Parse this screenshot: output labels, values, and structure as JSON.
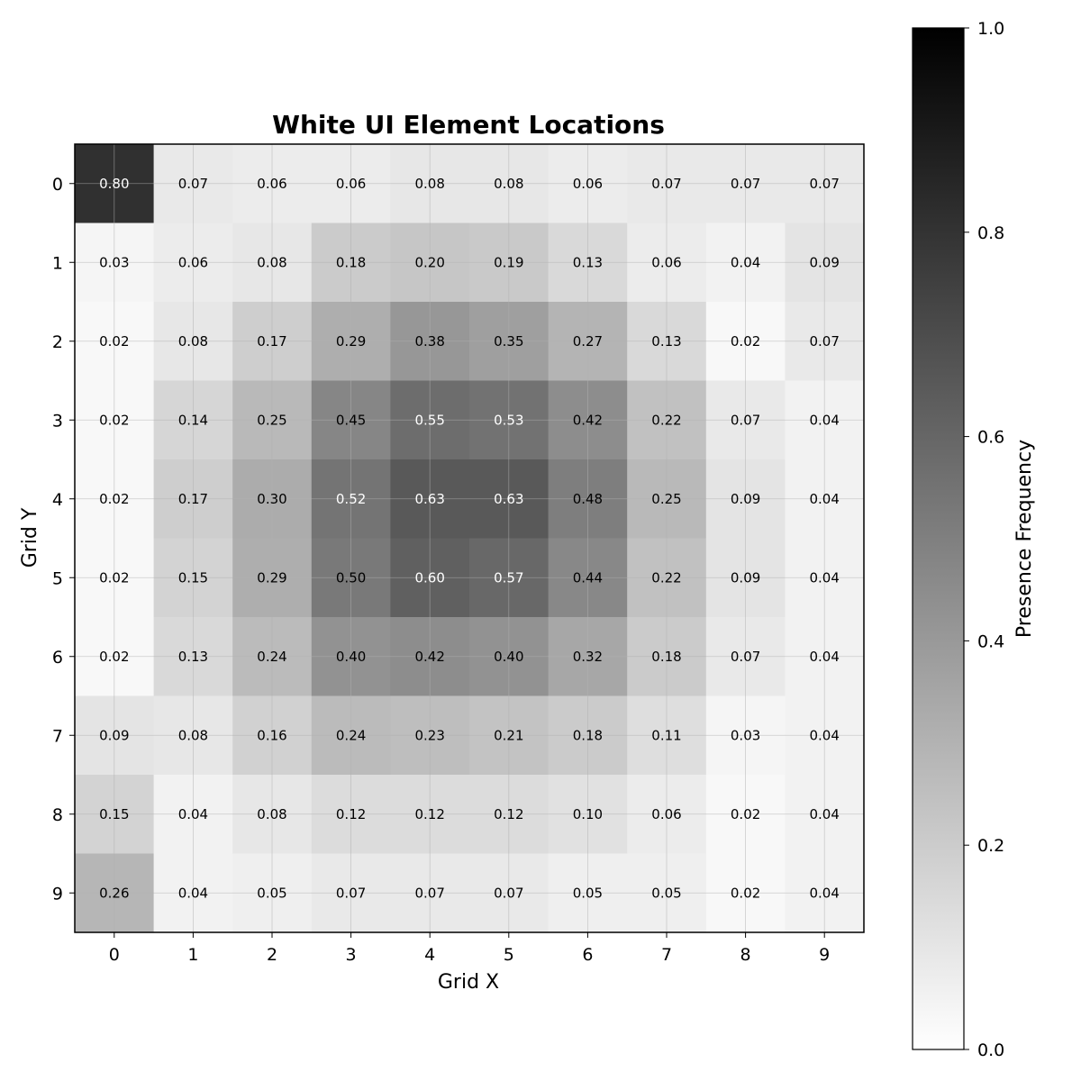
{
  "chart_data": {
    "type": "heatmap",
    "title": "White UI Element Locations",
    "xlabel": "Grid X",
    "ylabel": "Grid Y",
    "x_categories": [
      "0",
      "1",
      "2",
      "3",
      "4",
      "5",
      "6",
      "7",
      "8",
      "9"
    ],
    "y_categories": [
      "0",
      "1",
      "2",
      "3",
      "4",
      "5",
      "6",
      "7",
      "8",
      "9"
    ],
    "values": [
      [
        0.8,
        0.07,
        0.06,
        0.06,
        0.08,
        0.08,
        0.06,
        0.07,
        0.07,
        0.07
      ],
      [
        0.03,
        0.06,
        0.08,
        0.18,
        0.2,
        0.19,
        0.13,
        0.06,
        0.04,
        0.09
      ],
      [
        0.02,
        0.08,
        0.17,
        0.29,
        0.38,
        0.35,
        0.27,
        0.13,
        0.02,
        0.07
      ],
      [
        0.02,
        0.14,
        0.25,
        0.45,
        0.55,
        0.53,
        0.42,
        0.22,
        0.07,
        0.04
      ],
      [
        0.02,
        0.17,
        0.3,
        0.52,
        0.63,
        0.63,
        0.48,
        0.25,
        0.09,
        0.04
      ],
      [
        0.02,
        0.15,
        0.29,
        0.5,
        0.6,
        0.57,
        0.44,
        0.22,
        0.09,
        0.04
      ],
      [
        0.02,
        0.13,
        0.24,
        0.4,
        0.42,
        0.4,
        0.32,
        0.18,
        0.07,
        0.04
      ],
      [
        0.09,
        0.08,
        0.16,
        0.24,
        0.23,
        0.21,
        0.18,
        0.11,
        0.03,
        0.04
      ],
      [
        0.15,
        0.04,
        0.08,
        0.12,
        0.12,
        0.12,
        0.1,
        0.06,
        0.02,
        0.04
      ],
      [
        0.26,
        0.04,
        0.05,
        0.07,
        0.07,
        0.07,
        0.05,
        0.05,
        0.02,
        0.04
      ]
    ],
    "value_range": [
      0.0,
      1.0
    ],
    "colormap": "Greys",
    "grid": true,
    "colorbar": {
      "label": "Presence Frequency",
      "ticks": [
        "0.0",
        "0.2",
        "0.4",
        "0.6",
        "0.8",
        "1.0"
      ],
      "tick_values": [
        0.0,
        0.2,
        0.4,
        0.6,
        0.8,
        1.0
      ]
    }
  }
}
